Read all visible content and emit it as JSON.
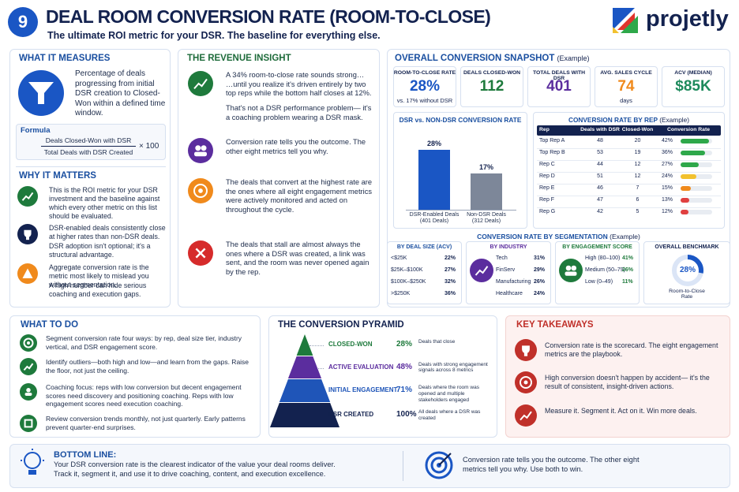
{
  "header": {
    "number": "9",
    "title": "DEAL ROOM CONVERSION RATE (ROOM-TO-CLOSE)",
    "subtitle": "The ultimate ROI metric for your DSR. The baseline for everything else.",
    "brand": "projetly"
  },
  "what_it_measures": {
    "title": "WHAT IT MEASURES",
    "text": "Percentage of deals progressing from initial DSR creation to Closed-Won within a defined time window.",
    "formula_label": "Formula",
    "numerator": "Deals Closed-Won with DSR",
    "denominator": "Total Deals with DSR Created",
    "multiplier": "× 100"
  },
  "why_it_matters": {
    "title": "WHY IT MATTERS",
    "items": [
      {
        "text": "This is the ROI metric for your DSR investment and the baseline against which every other metric on this list should be evaluated.",
        "color": "#1e7a3c"
      },
      {
        "text": "DSR-enabled deals consistently close at higher rates than non-DSR deals.",
        "note": "DSR adoption isn't optional; it's a structural advantage.",
        "color": "#13224f"
      },
      {
        "text": "Aggregate conversion rate is the metric most likely to mislead you without segmentation.",
        "note": "A high number can hide serious coaching and execution gaps.",
        "color": "#f08a1c"
      }
    ]
  },
  "revenue_insight": {
    "title": "THE REVENUE INSIGHT",
    "items": [
      {
        "text": "A 34% room-to-close rate sounds strong… …until you realize it's driven entirely by two top reps while the bottom half closes at 12%.",
        "note": "That's not a DSR performance problem— it's a coaching problem wearing a DSR mask.",
        "color": "#1e7a3c"
      },
      {
        "text": "Conversion rate tells you the outcome. The other eight metrics tell you why.",
        "color": "#5b2d9e"
      },
      {
        "text": "The deals that convert at the highest rate are the ones where all eight engagement metrics were actively monitored and acted on throughout the cycle.",
        "color": "#f08a1c"
      },
      {
        "text": "The deals that stall are almost always the ones where a DSR was created, a link was sent, and the room was never opened again by the rep.",
        "color": "#d62b2b"
      }
    ]
  },
  "snapshot": {
    "title": "OVERALL CONVERSION SNAPSHOT",
    "note": "(Example)",
    "kpis": [
      {
        "label": "ROOM-TO-CLOSE RATE",
        "value": "28%",
        "sub": "vs. 17% without DSR",
        "color": "#1a56c4"
      },
      {
        "label": "DEALS CLOSED-WON",
        "value": "112",
        "color": "#1e7a3c"
      },
      {
        "label": "TOTAL DEALS WITH DSR",
        "value": "401",
        "color": "#5b2d9e"
      },
      {
        "label": "AVG. SALES CYCLE",
        "value": "74",
        "sub": "days",
        "color": "#f08a1c"
      },
      {
        "label": "ACV (MEDIAN)",
        "value": "$85K",
        "color": "#1e8a5c"
      }
    ]
  },
  "dsr_chart": {
    "type": "bar",
    "title": "DSR vs. NON-DSR CONVERSION RATE",
    "categories": [
      "DSR-Enabled Deals\n(401 Deals)",
      "Non-DSR Deals\n(312 Deals)"
    ],
    "values": [
      28,
      17
    ],
    "value_labels": [
      "28%",
      "17%"
    ],
    "colors": [
      "#1a56c4",
      "#7d8799"
    ]
  },
  "rep_table": {
    "title": "CONVERSION RATE BY REP",
    "note": "(Example)",
    "columns": [
      "Rep",
      "Deals with DSR",
      "Closed-Won",
      "Conversion Rate"
    ],
    "rows": [
      {
        "rep": "Top Rep A",
        "deals": "48",
        "won": "20",
        "rate": 42,
        "rate_label": "42%",
        "color": "#2ea84a"
      },
      {
        "rep": "Top Rep B",
        "deals": "53",
        "won": "19",
        "rate": 36,
        "rate_label": "36%",
        "color": "#2ea84a"
      },
      {
        "rep": "Rep C",
        "deals": "44",
        "won": "12",
        "rate": 27,
        "rate_label": "27%",
        "color": "#2ea84a"
      },
      {
        "rep": "Rep D",
        "deals": "51",
        "won": "12",
        "rate": 24,
        "rate_label": "24%",
        "color": "#f2c12e"
      },
      {
        "rep": "Rep E",
        "deals": "46",
        "won": "7",
        "rate": 15,
        "rate_label": "15%",
        "color": "#f08a1c"
      },
      {
        "rep": "Rep F",
        "deals": "47",
        "won": "6",
        "rate": 13,
        "rate_label": "13%",
        "color": "#e04040"
      },
      {
        "rep": "Rep G",
        "deals": "42",
        "won": "5",
        "rate": 12,
        "rate_label": "12%",
        "color": "#e04040"
      }
    ]
  },
  "segmentation": {
    "title": "CONVERSION RATE BY SEGMENTATION",
    "note": "(Example)",
    "groups": [
      {
        "title": "BY DEAL SIZE (ACV)",
        "rows": [
          [
            "<$25K",
            "22%"
          ],
          [
            "$25K–$100K",
            "27%"
          ],
          [
            "$100K–$250K",
            "32%"
          ],
          [
            ">$250K",
            "36%"
          ]
        ],
        "color": "#1a4fa0"
      },
      {
        "title": "BY INDUSTRY",
        "rows": [
          [
            "Tech",
            "31%"
          ],
          [
            "FinServ",
            "29%"
          ],
          [
            "Manufacturing",
            "26%"
          ],
          [
            "Healthcare",
            "24%"
          ]
        ],
        "color": "#5b2d9e"
      },
      {
        "title": "BY ENGAGEMENT SCORE",
        "rows": [
          [
            "High (80–100)",
            "41%"
          ],
          [
            "Medium (50–79)",
            "26%"
          ],
          [
            "Low (0–49)",
            "11%"
          ]
        ],
        "color": "#1e7a3c"
      }
    ],
    "benchmark": {
      "title": "OVERALL BENCHMARK",
      "value": 28,
      "value_label": "28%",
      "label": "Room-to-Close\nRate",
      "color": "#1a56c4"
    }
  },
  "what_to_do": {
    "title": "WHAT TO DO",
    "items": [
      {
        "text": "Segment conversion rate four ways: by rep, deal size tier, industry vertical, and DSR engagement score."
      },
      {
        "text": "Identify outliers—both high and low—and learn from the gaps. Raise the floor, not just the ceiling."
      },
      {
        "text": "Coaching focus: reps with low conversion but decent engagement scores need discovery and positioning coaching. Reps with low engagement scores need execution coaching."
      },
      {
        "text": "Review conversion trends monthly, not just quarterly. Early patterns prevent quarter-end surprises."
      }
    ]
  },
  "pyramid": {
    "title": "THE CONVERSION PYRAMID",
    "levels": [
      {
        "name": "CLOSED-WON",
        "value": "28%",
        "desc": "Deals that close",
        "color": "#1e7a3c"
      },
      {
        "name": "ACTIVE EVALUATION",
        "value": "48%",
        "desc": "Deals with strong engagement signals across 8 metrics",
        "color": "#5b2d9e"
      },
      {
        "name": "INITIAL ENGAGEMENT",
        "value": "71%",
        "desc": "Deals where the room was opened and multiple stakeholders engaged",
        "color": "#1f55b8"
      },
      {
        "name": "DSR CREATED",
        "value": "100%",
        "desc": "All deals where a DSR was created",
        "color": "#13224f"
      }
    ]
  },
  "takeaways": {
    "title": "KEY TAKEAWAYS",
    "items": [
      {
        "text": "Conversion rate is the scorecard. The eight engagement metrics are the playbook."
      },
      {
        "text": "High conversion doesn't happen by accident— it's the result of consistent, insight-driven actions."
      },
      {
        "text": "Measure it. Segment it. Act on it. Win more deals."
      }
    ]
  },
  "bottom_line": {
    "title": "BOTTOM LINE:",
    "text": "Your DSR conversion rate is the clearest indicator of the value your deal rooms deliver. Track it, segment it, and use it to drive coaching, content, and execution excellence.",
    "right": "Conversion rate tells you the outcome. The other eight metrics tell you why. Use both to win."
  }
}
